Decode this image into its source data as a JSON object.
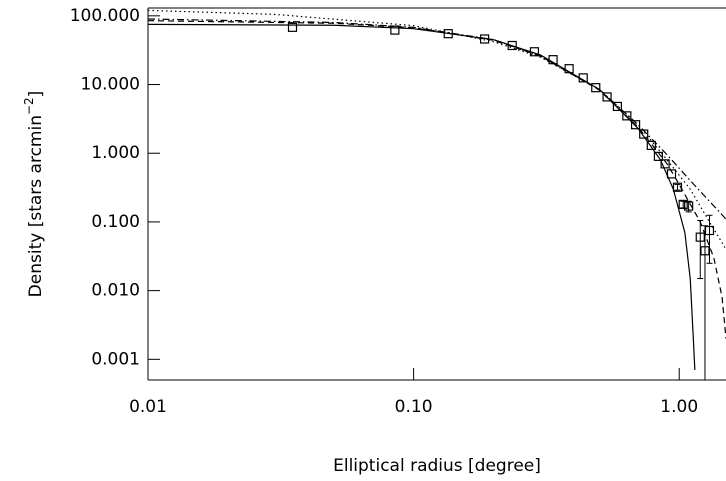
{
  "chart_data": {
    "type": "line",
    "log_x": true,
    "log_y": true,
    "xlabel": "Elliptical radius [degree]",
    "ylabel": "Density [stars arcmin",
    "ylabel_sup": "−2",
    "ylabel_end": "]",
    "xlim": [
      0.01,
      1.5
    ],
    "ylim": [
      0.0005,
      130
    ],
    "xticks": [
      0.01,
      {
        "value": 0.1,
        "label": "0.10"
      },
      {
        "value": 1,
        "label": "1.00"
      }
    ],
    "yticks": [
      {
        "value": 100,
        "label": "100.000"
      },
      {
        "value": 10,
        "label": "10.000"
      },
      {
        "value": 1,
        "label": "1.000"
      },
      {
        "value": 0.1,
        "label": "0.100"
      },
      {
        "value": 0.01,
        "label": "0.010"
      },
      {
        "value": 0.001,
        "label": "0.001"
      }
    ],
    "color": "#000000",
    "points": {
      "x": [
        0.035,
        0.085,
        0.135,
        0.185,
        0.235,
        0.285,
        0.335,
        0.385,
        0.435,
        0.485,
        0.535,
        0.585,
        0.635,
        0.685,
        0.735,
        0.785,
        0.835,
        0.885,
        0.935,
        0.985,
        1.035,
        1.085,
        1.2,
        1.25,
        1.3
      ],
      "values": [
        68,
        62,
        55,
        46,
        37,
        30,
        23,
        17,
        12.5,
        9,
        6.6,
        4.8,
        3.5,
        2.6,
        1.9,
        1.3,
        0.9,
        0.7,
        0.5,
        0.32,
        0.18,
        0.17,
        0.06,
        0.038,
        0.075
      ],
      "errors": [
        0,
        0,
        0,
        0,
        0,
        0,
        0,
        0,
        0,
        0,
        0,
        0,
        0,
        0,
        0,
        0,
        0,
        0,
        0,
        0.03,
        0.02,
        0.03,
        0.045,
        0.05,
        0.05
      ]
    },
    "series": [
      {
        "dash": "solid",
        "x": [
          0.01,
          0.05,
          0.1,
          0.2,
          0.3,
          0.5,
          0.7,
          0.85,
          0.95,
          1.05,
          1.1,
          1.13,
          1.145
        ],
        "values": [
          75,
          73,
          65,
          45,
          27,
          8.5,
          2.3,
          0.8,
          0.3,
          0.07,
          0.015,
          0.002,
          0.0007
        ]
      },
      {
        "dash": "dashed",
        "x": [
          0.01,
          0.05,
          0.1,
          0.2,
          0.3,
          0.5,
          0.7,
          0.9,
          1.0,
          1.2,
          1.35,
          1.45,
          1.5
        ],
        "values": [
          85,
          78,
          67,
          44,
          26,
          8.3,
          2.4,
          0.7,
          0.35,
          0.1,
          0.03,
          0.008,
          0.002
        ]
      },
      {
        "dash": "dotted",
        "x": [
          0.01,
          0.03,
          0.1,
          0.2,
          0.3,
          0.5,
          0.7,
          0.9,
          1.1,
          1.3,
          1.5
        ],
        "values": [
          120,
          105,
          72,
          42,
          25,
          8.5,
          2.6,
          0.8,
          0.3,
          0.1,
          0.04
        ]
      },
      {
        "dash": "dashdot",
        "x": [
          0.01,
          0.05,
          0.1,
          0.2,
          0.3,
          0.5,
          0.7,
          0.9,
          1.1,
          1.3,
          1.5
        ],
        "values": [
          90,
          80,
          68,
          45,
          26,
          8.5,
          2.6,
          0.95,
          0.4,
          0.2,
          0.11
        ]
      }
    ]
  }
}
